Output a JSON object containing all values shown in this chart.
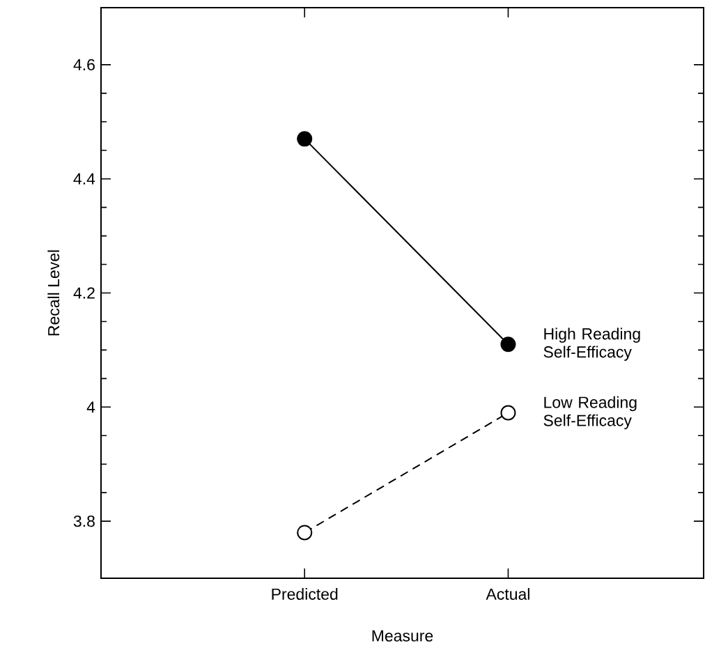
{
  "chart_data": {
    "type": "line",
    "xlabel": "Measure",
    "ylabel": "Recall Level",
    "categories": [
      "Predicted",
      "Actual"
    ],
    "series": [
      {
        "name": "High Reading Self-Efficacy",
        "color": "#000000",
        "values": [
          4.47,
          4.11
        ],
        "line_style": "solid"
      },
      {
        "name": "Low Reading Self-Efficacy",
        "color": "#000000",
        "values": [
          3.78,
          3.99
        ],
        "line_style": "dashed"
      }
    ],
    "ylim": [
      3.7,
      4.7
    ],
    "yticks": [
      3.8,
      4,
      4.2,
      4.4,
      4.6
    ],
    "marker": "circle",
    "grid": false,
    "legend": "right"
  }
}
